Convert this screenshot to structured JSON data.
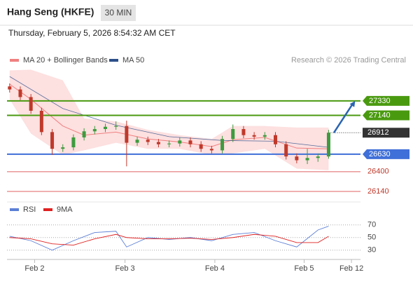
{
  "header": {
    "title": "Hang Seng (HKFE)",
    "interval": "30 MIN",
    "timestamp": "Thursday, February 5, 2026 8:54:32 AM CET"
  },
  "chart_data": [
    {
      "type": "candlestick",
      "legend": [
        {
          "name": "MA 20 + Bollinger Bands",
          "color": "#f08080"
        },
        {
          "name": "MA 50",
          "color": "#2c4f8a"
        }
      ],
      "credit": "Research © 2026 Trading Central",
      "xlim": [
        -0.5,
        66
      ],
      "ylim": [
        26030,
        27780
      ],
      "up_color": "#3e9b3e",
      "down_color": "#c0392b",
      "candles": {
        "x": [
          0,
          2,
          4,
          6,
          8,
          10,
          12,
          14,
          16,
          18,
          20,
          22,
          24,
          26,
          28,
          30,
          32,
          34,
          36,
          38,
          40,
          42,
          44,
          46,
          48,
          50,
          52,
          54,
          56,
          58,
          60
        ],
        "open": [
          27520,
          27480,
          27380,
          27200,
          26920,
          26700,
          26720,
          26850,
          26930,
          26960,
          26990,
          27000,
          26780,
          26820,
          26790,
          26760,
          26770,
          26810,
          26760,
          26700,
          26680,
          26830,
          26960,
          26880,
          26860,
          26880,
          26760,
          26600,
          26550,
          26580,
          26600
        ],
        "high": [
          27560,
          27520,
          27420,
          27240,
          26960,
          26760,
          26890,
          26970,
          27000,
          27030,
          27060,
          27070,
          26860,
          26860,
          26830,
          26810,
          26850,
          26850,
          26800,
          26740,
          26870,
          27020,
          27000,
          26920,
          26920,
          26920,
          26800,
          26640,
          26700,
          26640,
          26950
        ],
        "low": [
          27440,
          27340,
          27160,
          26880,
          26620,
          26660,
          26680,
          26810,
          26890,
          26920,
          26950,
          26470,
          26740,
          26750,
          26720,
          26720,
          26730,
          26720,
          26660,
          26640,
          26640,
          26790,
          26840,
          26820,
          26820,
          26720,
          26560,
          26510,
          26500,
          26530,
          26570
        ],
        "close": [
          27480,
          27380,
          27200,
          26920,
          26700,
          26720,
          26850,
          26930,
          26960,
          26990,
          27000,
          26780,
          26820,
          26790,
          26760,
          26770,
          26810,
          26760,
          26700,
          26680,
          26830,
          26960,
          26880,
          26860,
          26880,
          26760,
          26600,
          26550,
          26580,
          26600,
          26912
        ]
      },
      "bollinger": {
        "x": [
          0,
          4,
          10,
          14,
          20,
          26,
          32,
          38,
          42,
          48,
          54,
          60
        ],
        "upper": [
          27730,
          27740,
          27600,
          27100,
          27060,
          26950,
          26880,
          26830,
          27000,
          27000,
          26980,
          26980
        ],
        "middle": [
          27550,
          27350,
          27000,
          26880,
          26920,
          26830,
          26790,
          26730,
          26820,
          26850,
          26710,
          26700
        ],
        "lower": [
          27350,
          26900,
          26620,
          26680,
          26780,
          26700,
          26700,
          26620,
          26640,
          26700,
          26440,
          26420
        ],
        "band_color": "#fde0e0"
      },
      "ma50": {
        "x": [
          0,
          10,
          20,
          30,
          40,
          50,
          60
        ],
        "values": [
          27650,
          27230,
          27010,
          26860,
          26810,
          26800,
          26720
        ]
      },
      "levels": [
        {
          "value": 27330,
          "color": "#4a9a10",
          "style": "resistance"
        },
        {
          "value": 27140,
          "color": "#4a9a10",
          "style": "resistance"
        },
        {
          "value": 26912,
          "color": "#333333",
          "style": "current"
        },
        {
          "value": 26630,
          "color": "#3f6fd8",
          "style": "pivot"
        },
        {
          "value": 26400,
          "color": "#e06060",
          "style": "support"
        },
        {
          "value": 26140,
          "color": "#e06060",
          "style": "support"
        }
      ],
      "projection": {
        "x": [
          61,
          65
        ],
        "values": [
          26912,
          27330
        ],
        "color": "#2b64b0"
      }
    },
    {
      "type": "line",
      "xlim": [
        -0.5,
        66
      ],
      "ylim": [
        13,
        82
      ],
      "yticks": [
        70,
        50,
        30
      ],
      "xticks": [
        {
          "value": 4.7,
          "label": "Feb 2"
        },
        {
          "value": 21.7,
          "label": "Feb 3"
        },
        {
          "value": 38.6,
          "label": "Feb 4"
        },
        {
          "value": 55.4,
          "label": "Feb 5"
        },
        {
          "value": 64.3,
          "label": "Feb 12"
        }
      ],
      "x": [
        0,
        4,
        8,
        12,
        16,
        20,
        22,
        26,
        30,
        34,
        38,
        42,
        46,
        50,
        54,
        58,
        60
      ],
      "series": [
        {
          "name": "RSI",
          "color": "#5b7fd6",
          "values": [
            52,
            45,
            30,
            45,
            58,
            60,
            35,
            50,
            47,
            50,
            45,
            55,
            58,
            45,
            35,
            62,
            68
          ]
        },
        {
          "name": "9MA",
          "color": "#e02020",
          "values": [
            50,
            48,
            40,
            38,
            48,
            55,
            50,
            48,
            48,
            49,
            47,
            50,
            55,
            52,
            42,
            42,
            52
          ]
        }
      ]
    }
  ]
}
